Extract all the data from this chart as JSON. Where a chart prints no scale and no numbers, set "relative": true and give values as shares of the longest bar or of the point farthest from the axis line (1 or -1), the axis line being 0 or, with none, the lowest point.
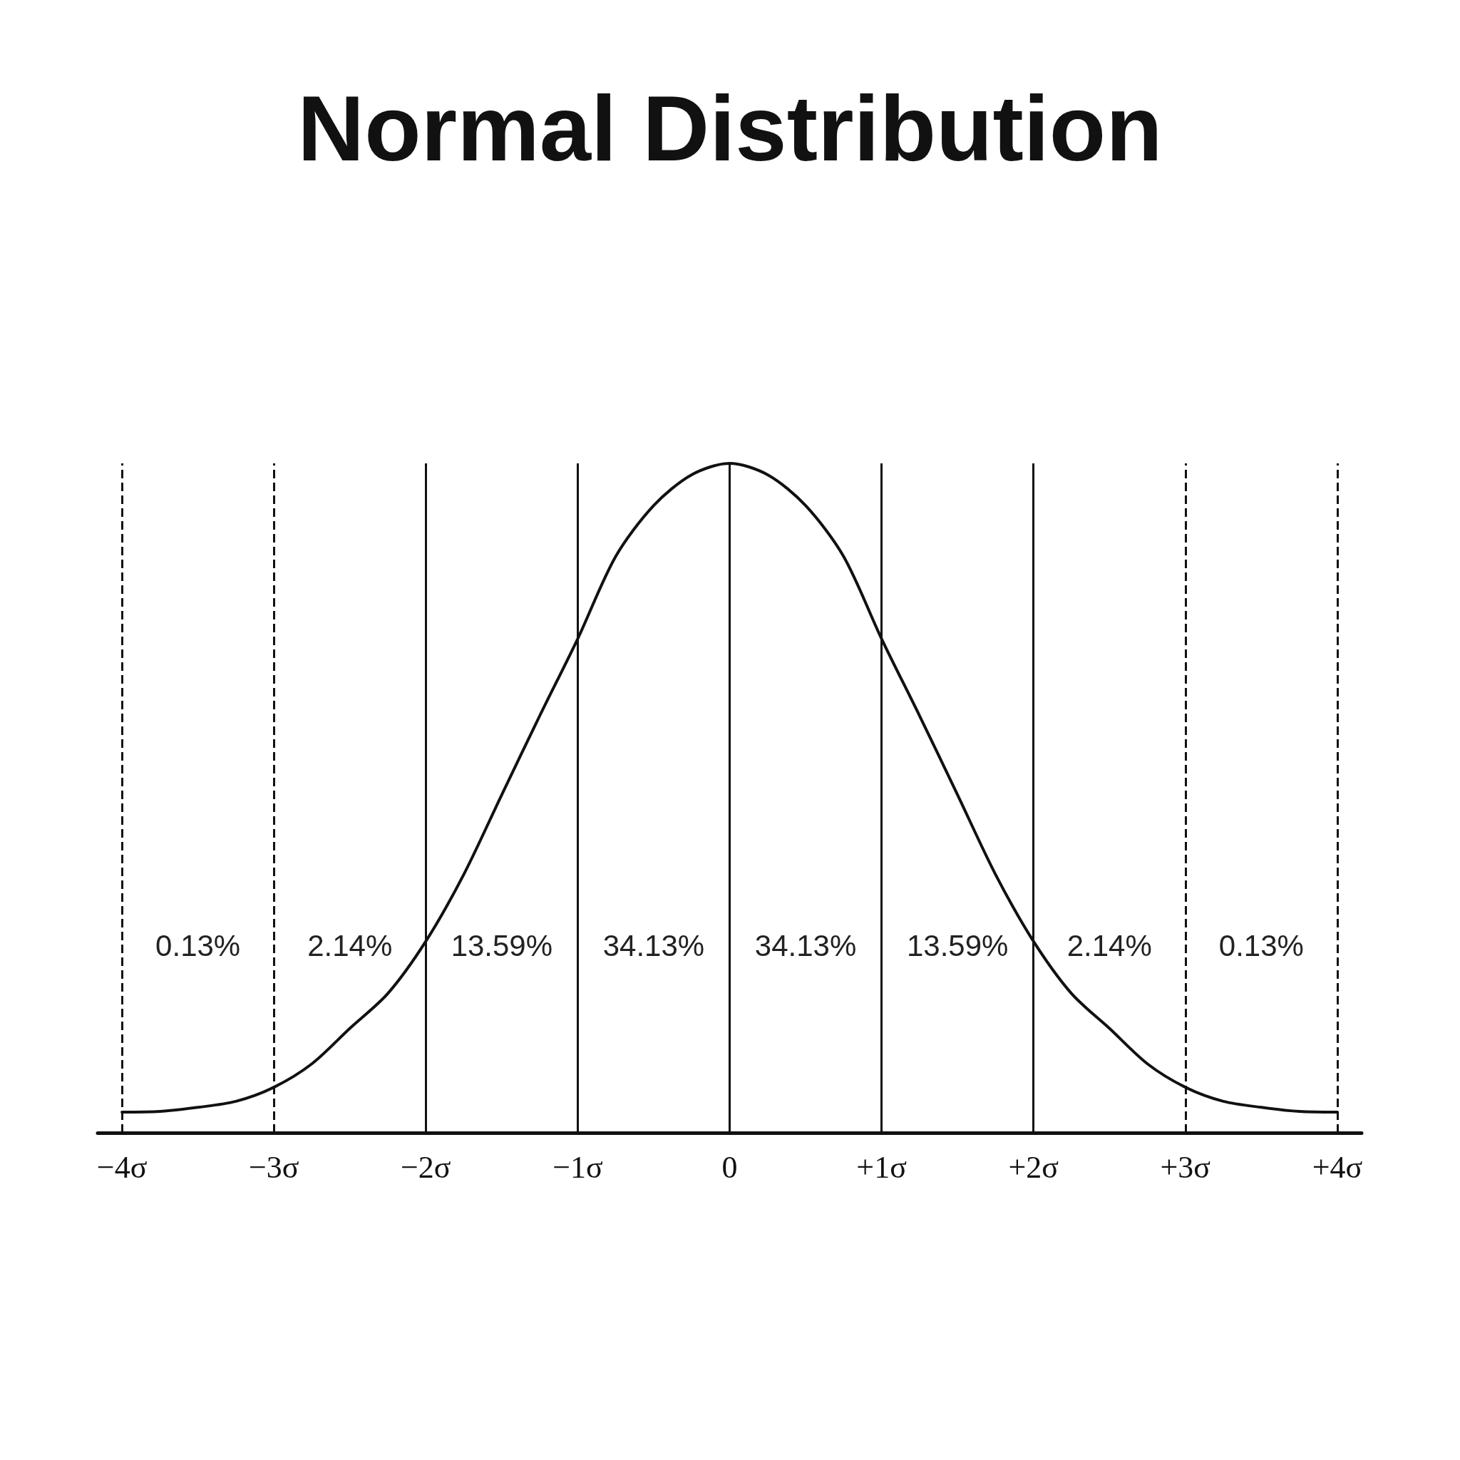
{
  "chart_data": {
    "type": "line",
    "title": "Normal Distribution",
    "relative": true,
    "x": [
      -4,
      -3.75,
      -3.5,
      -3.25,
      -3,
      -2.75,
      -2.5,
      -2.25,
      -2,
      -1.75,
      -1.5,
      -1.25,
      -1,
      -0.75,
      -0.5,
      -0.25,
      0,
      0.25,
      0.5,
      0.75,
      1,
      1.25,
      1.5,
      1.75,
      2,
      2.25,
      2.5,
      2.75,
      3,
      3.25,
      3.5,
      3.75,
      4
    ],
    "series": [
      {
        "color": "#111111",
        "values": [
          0.031,
          0.032,
          0.038,
          0.047,
          0.068,
          0.103,
          0.156,
          0.208,
          0.286,
          0.386,
          0.505,
          0.623,
          0.738,
          0.861,
          0.937,
          0.983,
          1,
          0.983,
          0.937,
          0.861,
          0.738,
          0.623,
          0.505,
          0.386,
          0.286,
          0.208,
          0.156,
          0.103,
          0.068,
          0.047,
          0.038,
          0.032,
          0.031
        ]
      }
    ],
    "xlim": [
      -4.16,
      4.16
    ],
    "xticks": [
      {
        "value": -4,
        "label": "−4σ"
      },
      {
        "value": -3,
        "label": "−3σ"
      },
      {
        "value": -2,
        "label": "−2σ"
      },
      {
        "value": -1,
        "label": "−1σ"
      },
      0,
      {
        "value": 1,
        "label": "+1σ"
      },
      {
        "value": 2,
        "label": "+2σ"
      },
      {
        "value": 3,
        "label": "+3σ"
      },
      {
        "value": 4,
        "label": "+4σ"
      }
    ],
    "ref_lines": [
      {
        "axis": "x",
        "value": -4,
        "line_style": "dashed"
      },
      {
        "axis": "x",
        "value": -3,
        "line_style": "dashed"
      },
      {
        "axis": "x",
        "value": -2,
        "line_style": "solid"
      },
      {
        "axis": "x",
        "value": -1,
        "line_style": "solid"
      },
      {
        "axis": "x",
        "value": 0,
        "line_style": "solid"
      },
      {
        "axis": "x",
        "value": 1,
        "line_style": "solid"
      },
      {
        "axis": "x",
        "value": 2,
        "line_style": "solid"
      },
      {
        "axis": "x",
        "value": 3,
        "line_style": "dashed"
      },
      {
        "axis": "x",
        "value": 4,
        "line_style": "dashed"
      }
    ],
    "annotations": [
      "0.13%",
      "2.14%",
      "13.59%",
      "34.13%",
      "34.13%",
      "13.59%",
      "2.14%",
      "0.13%"
    ],
    "grid": false,
    "marker": "none",
    "line_style": "solid"
  }
}
